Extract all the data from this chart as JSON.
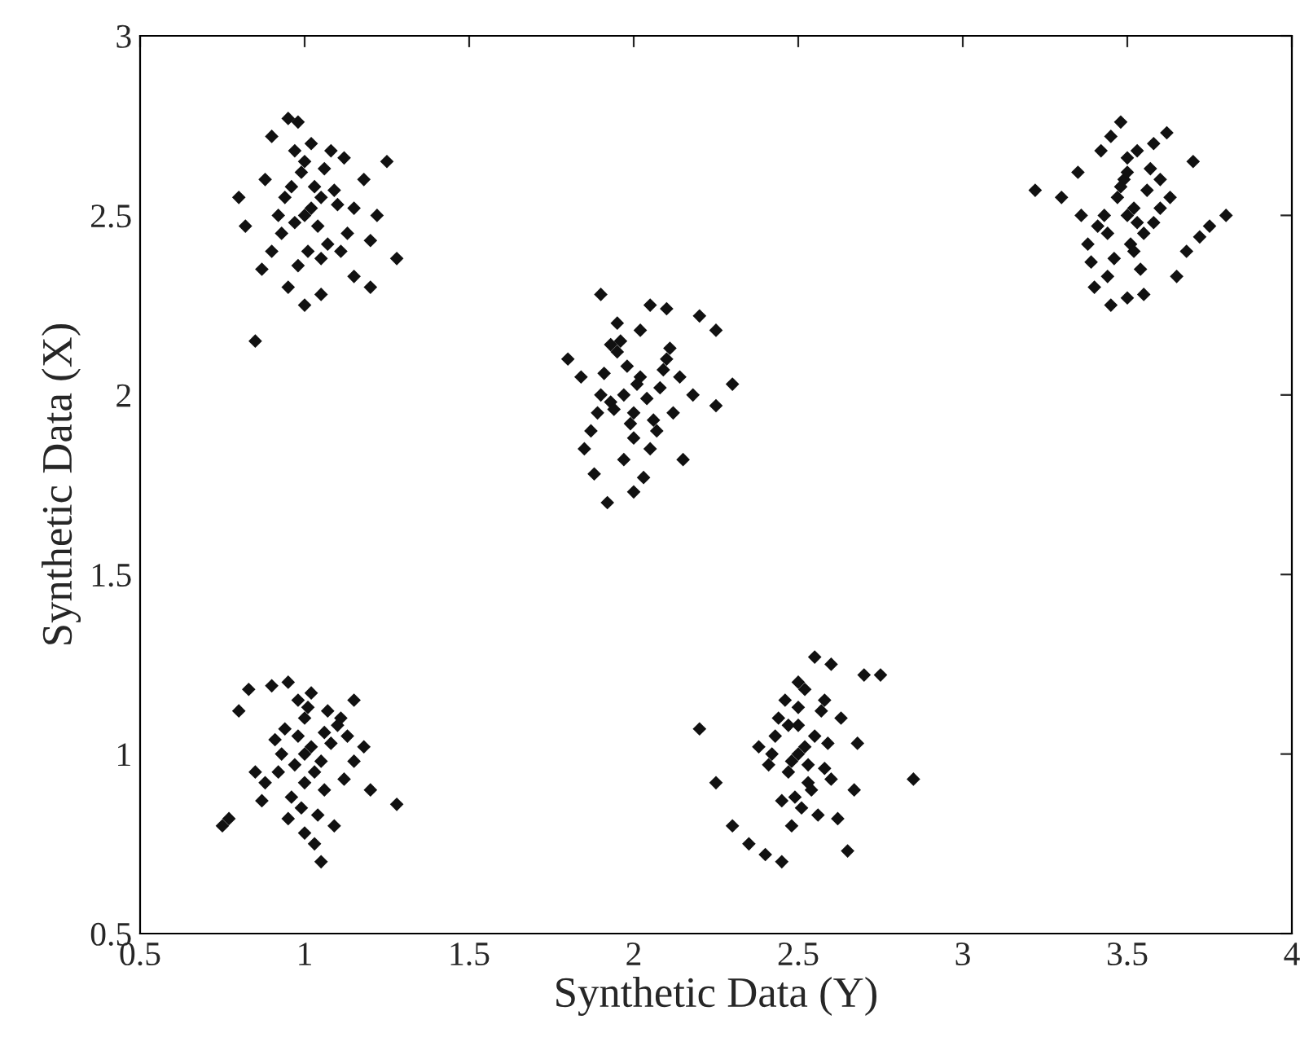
{
  "chart_data": {
    "type": "scatter",
    "xlabel": "Synthetic Data (Y)",
    "ylabel": "Synthetic Data (X)",
    "xlim": [
      0.5,
      4
    ],
    "ylim": [
      0.5,
      3
    ],
    "xticks": [
      0.5,
      1,
      1.5,
      2,
      2.5,
      3,
      3.5,
      4
    ],
    "yticks": [
      0.5,
      1,
      1.5,
      2,
      2.5,
      3
    ],
    "grid": false,
    "marker": "diamond",
    "series": [
      {
        "color": "#111111",
        "x": [
          0.85,
          0.95,
          0.98,
          0.9,
          1.25,
          1.28,
          0.8,
          0.82,
          1.2,
          1.15,
          0.95,
          1.0,
          1.05,
          0.88,
          1.18,
          1.22,
          1.08,
          1.12,
          1.0,
          1.02,
          1.05,
          0.97,
          0.93,
          1.1,
          1.03,
          0.99,
          1.07,
          0.92,
          1.13,
          1.01,
          0.96,
          1.04,
          1.06,
          0.94,
          1.09,
          0.98,
          1.0,
          1.11,
          0.9,
          1.15,
          0.87,
          1.2,
          1.02,
          0.97,
          1.05
        ],
        "values": [
          2.15,
          2.77,
          2.76,
          2.72,
          2.65,
          2.38,
          2.55,
          2.47,
          2.3,
          2.33,
          2.3,
          2.25,
          2.28,
          2.6,
          2.6,
          2.5,
          2.68,
          2.66,
          2.5,
          2.52,
          2.55,
          2.48,
          2.45,
          2.53,
          2.58,
          2.62,
          2.42,
          2.5,
          2.45,
          2.4,
          2.58,
          2.47,
          2.63,
          2.55,
          2.57,
          2.36,
          2.65,
          2.4,
          2.4,
          2.52,
          2.35,
          2.43,
          2.7,
          2.68,
          2.38
        ]
      },
      {
        "color": "#111111",
        "x": [
          1.9,
          2.05,
          2.1,
          1.95,
          2.2,
          2.25,
          2.3,
          1.8,
          1.85,
          2.25,
          1.92,
          2.0,
          1.88,
          2.15,
          2.03,
          1.97,
          2.08,
          1.93,
          2.0,
          2.02,
          1.98,
          2.06,
          1.95,
          2.1,
          1.9,
          2.12,
          1.87,
          2.0,
          2.05,
          1.96,
          2.01,
          1.94,
          2.09,
          2.04,
          1.99,
          1.91,
          2.14,
          2.07,
          1.89,
          2.18,
          1.84,
          2.02,
          1.97,
          2.11,
          1.93
        ],
        "values": [
          2.28,
          2.25,
          2.24,
          2.2,
          2.22,
          2.18,
          2.03,
          2.1,
          1.85,
          1.97,
          1.7,
          1.73,
          1.78,
          1.82,
          1.77,
          2.0,
          2.02,
          1.98,
          1.95,
          2.05,
          2.08,
          1.93,
          2.12,
          2.1,
          2.0,
          1.95,
          1.9,
          1.88,
          1.85,
          2.15,
          2.03,
          1.96,
          2.07,
          1.99,
          1.92,
          2.06,
          2.05,
          1.9,
          1.95,
          2.0,
          2.05,
          2.18,
          1.82,
          2.13,
          2.14
        ]
      },
      {
        "color": "#111111",
        "x": [
          3.22,
          3.8,
          3.75,
          3.72,
          3.68,
          3.45,
          3.5,
          3.55,
          3.4,
          3.48,
          3.62,
          3.7,
          3.65,
          3.35,
          3.38,
          3.42,
          3.3,
          3.58,
          3.5,
          3.52,
          3.47,
          3.53,
          3.44,
          3.56,
          3.49,
          3.51,
          3.46,
          3.54,
          3.43,
          3.57,
          3.5,
          3.41,
          3.6,
          3.45,
          3.55,
          3.48,
          3.52,
          3.39,
          3.63,
          3.36,
          3.5,
          3.58,
          3.44,
          3.6,
          3.53
        ],
        "values": [
          2.57,
          2.5,
          2.47,
          2.44,
          2.4,
          2.25,
          2.27,
          2.28,
          2.3,
          2.76,
          2.73,
          2.65,
          2.33,
          2.62,
          2.42,
          2.68,
          2.55,
          2.7,
          2.5,
          2.52,
          2.55,
          2.48,
          2.45,
          2.57,
          2.6,
          2.42,
          2.38,
          2.35,
          2.5,
          2.63,
          2.66,
          2.47,
          2.52,
          2.72,
          2.45,
          2.58,
          2.4,
          2.37,
          2.55,
          2.5,
          2.62,
          2.48,
          2.33,
          2.6,
          2.68
        ]
      },
      {
        "color": "#111111",
        "x": [
          0.75,
          0.77,
          0.8,
          1.05,
          1.28,
          0.83,
          1.15,
          1.2,
          0.9,
          0.95,
          1.0,
          1.02,
          1.05,
          0.98,
          1.03,
          0.97,
          1.08,
          0.93,
          1.1,
          1.0,
          1.12,
          0.88,
          1.06,
          0.96,
          1.01,
          0.99,
          1.04,
          0.94,
          1.07,
          0.92,
          1.13,
          1.18,
          0.85,
          0.87,
          1.0,
          1.09,
          0.95,
          1.15,
          1.02,
          0.91,
          1.11,
          1.0,
          1.06,
          0.98,
          1.03
        ],
        "values": [
          0.8,
          0.82,
          1.12,
          0.7,
          0.86,
          1.18,
          1.15,
          0.9,
          1.19,
          1.2,
          1.0,
          1.02,
          0.98,
          1.05,
          0.95,
          0.97,
          1.03,
          1.0,
          1.08,
          1.1,
          0.93,
          0.92,
          0.9,
          0.88,
          1.13,
          0.85,
          0.83,
          1.07,
          1.12,
          0.95,
          1.05,
          1.02,
          0.95,
          0.87,
          0.78,
          0.8,
          0.82,
          0.98,
          1.17,
          1.04,
          1.1,
          0.92,
          1.06,
          1.15,
          0.75
        ]
      },
      {
        "color": "#111111",
        "x": [
          2.45,
          2.55,
          2.6,
          2.7,
          2.75,
          2.85,
          2.2,
          2.25,
          2.3,
          2.35,
          2.4,
          2.65,
          2.62,
          2.5,
          2.52,
          2.48,
          2.55,
          2.47,
          2.53,
          2.58,
          2.5,
          2.44,
          2.6,
          2.42,
          2.57,
          2.49,
          2.51,
          2.46,
          2.54,
          2.43,
          2.59,
          2.5,
          2.56,
          2.45,
          2.63,
          2.38,
          2.67,
          2.52,
          2.48,
          2.53,
          2.58,
          2.41,
          2.68,
          2.5,
          2.47
        ],
        "values": [
          0.7,
          1.27,
          1.25,
          1.22,
          1.22,
          0.93,
          1.07,
          0.92,
          0.8,
          0.75,
          0.72,
          0.73,
          0.82,
          1.0,
          1.02,
          0.98,
          1.05,
          0.95,
          0.97,
          0.96,
          1.08,
          1.1,
          0.93,
          1.0,
          1.12,
          0.88,
          0.85,
          1.15,
          0.9,
          1.05,
          1.03,
          1.2,
          0.83,
          0.87,
          1.1,
          1.02,
          0.9,
          1.18,
          0.8,
          0.92,
          1.15,
          0.97,
          1.03,
          1.13,
          1.08
        ]
      }
    ]
  }
}
